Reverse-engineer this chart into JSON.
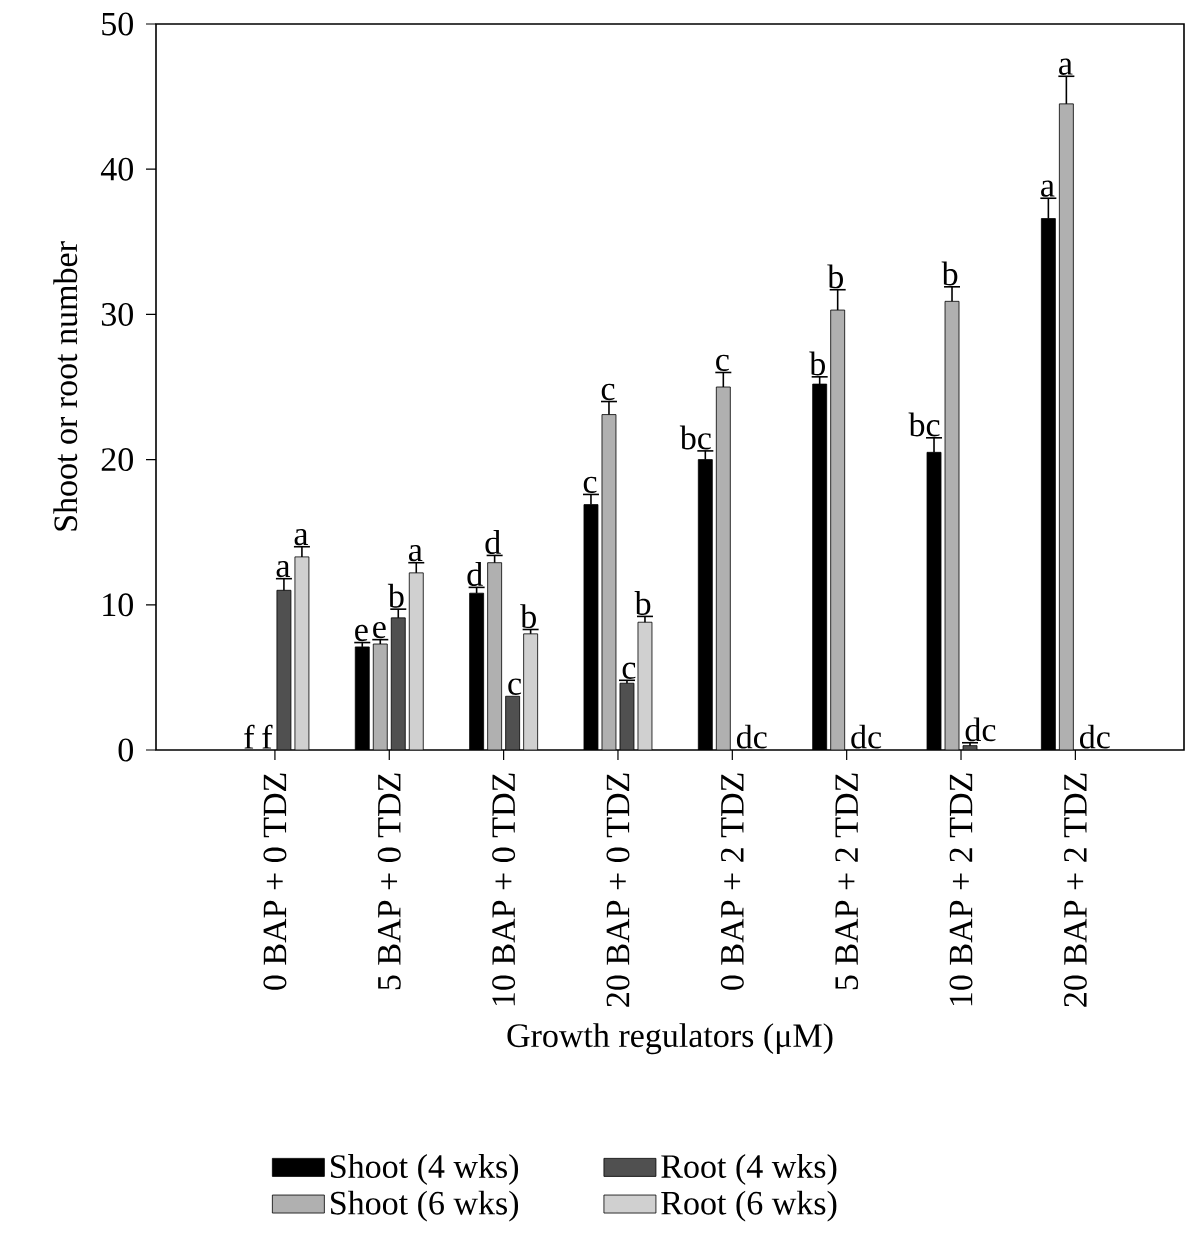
{
  "chart_data": {
    "type": "bar",
    "xlabel": "Growth regulators (μM)",
    "ylabel": "Shoot or root number",
    "categories": [
      "0 BAP + 0 TDZ",
      "5 BAP + 0 TDZ",
      "10 BAP + 0 TDZ",
      "20 BAP + 0 TDZ",
      "0 BAP + 2 TDZ",
      "5 BAP + 2 TDZ",
      "10 BAP + 2 TDZ",
      "20 BAP + 2 TDZ"
    ],
    "series": [
      {
        "name": "Shoot (4 wks)",
        "color": "#000000",
        "values": [
          0,
          7.1,
          10.8,
          16.9,
          20.0,
          25.2,
          20.5,
          36.6
        ],
        "errors": [
          null,
          [
            7.1,
            7.4
          ],
          [
            10.8,
            11.2
          ],
          [
            16.9,
            17.6
          ],
          [
            20.0,
            20.6
          ],
          [
            25.2,
            25.7
          ],
          [
            20.5,
            21.5
          ],
          [
            36.6,
            38.0
          ]
        ],
        "value_labels": [
          "f",
          "e",
          "d",
          "c",
          "bc",
          "b",
          "bc",
          "a"
        ]
      },
      {
        "name": "Shoot (6 wks)",
        "color": "#b0b0b0",
        "values": [
          0,
          7.3,
          12.9,
          23.1,
          25.0,
          30.3,
          30.9,
          44.5
        ],
        "errors": [
          null,
          [
            7.3,
            7.6
          ],
          [
            12.9,
            13.4
          ],
          [
            23.1,
            24.0
          ],
          [
            25.0,
            26.0
          ],
          [
            30.3,
            31.7
          ],
          [
            30.9,
            31.9
          ],
          [
            44.5,
            46.4
          ]
        ],
        "value_labels": [
          "f",
          "e",
          "d",
          "c",
          "c",
          "b",
          "b",
          "a"
        ]
      },
      {
        "name": "Root (4 wks)",
        "color": "#505050",
        "values": [
          11.0,
          9.1,
          3.7,
          4.6,
          0,
          0,
          0.3,
          0
        ],
        "errors": [
          [
            11.0,
            11.8
          ],
          [
            9.1,
            9.7
          ],
          null,
          [
            4.6,
            4.8
          ],
          null,
          null,
          [
            0.3,
            0.5
          ],
          null
        ],
        "value_labels": [
          "a",
          "b",
          "c",
          "c",
          "dc",
          "dc",
          "dc",
          "dc"
        ]
      },
      {
        "name": "Root (6 wks)",
        "color": "#d0d0d0",
        "values": [
          13.3,
          12.2,
          8.0,
          8.8,
          0,
          0,
          0,
          0
        ],
        "errors": [
          [
            13.3,
            14.0
          ],
          [
            12.2,
            12.9
          ],
          [
            8.0,
            8.3
          ],
          [
            8.8,
            9.2
          ],
          null,
          null,
          null,
          null
        ],
        "value_labels": [
          "a",
          "a",
          "b",
          "b",
          null,
          null,
          null,
          null
        ]
      }
    ],
    "ylim": [
      0,
      50
    ],
    "yticks": [
      0,
      10,
      20,
      30,
      40,
      50
    ],
    "legend": "bottom",
    "grid": false
  }
}
